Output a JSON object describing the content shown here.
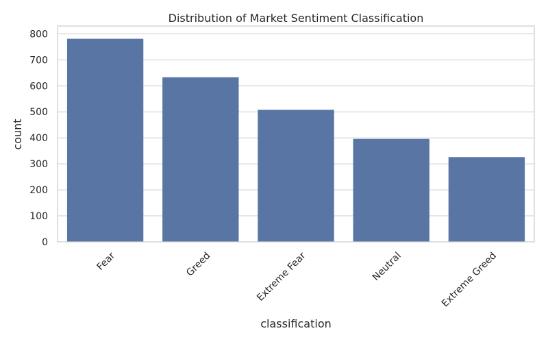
{
  "chart_data": {
    "type": "bar",
    "title": "Distribution of Market Sentiment Classification",
    "xlabel": "classification",
    "ylabel": "count",
    "categories": [
      "Fear",
      "Greed",
      "Extreme Fear",
      "Neutral",
      "Extreme Greed"
    ],
    "values": [
      781,
      633,
      508,
      396,
      326
    ],
    "ylim": [
      0,
      830
    ],
    "yticks": [
      0,
      100,
      200,
      300,
      400,
      500,
      600,
      700,
      800
    ],
    "bar_color": "#5975a4",
    "grid": true,
    "grid_color": "#cccccc",
    "x_tick_rotation": "45deg"
  }
}
